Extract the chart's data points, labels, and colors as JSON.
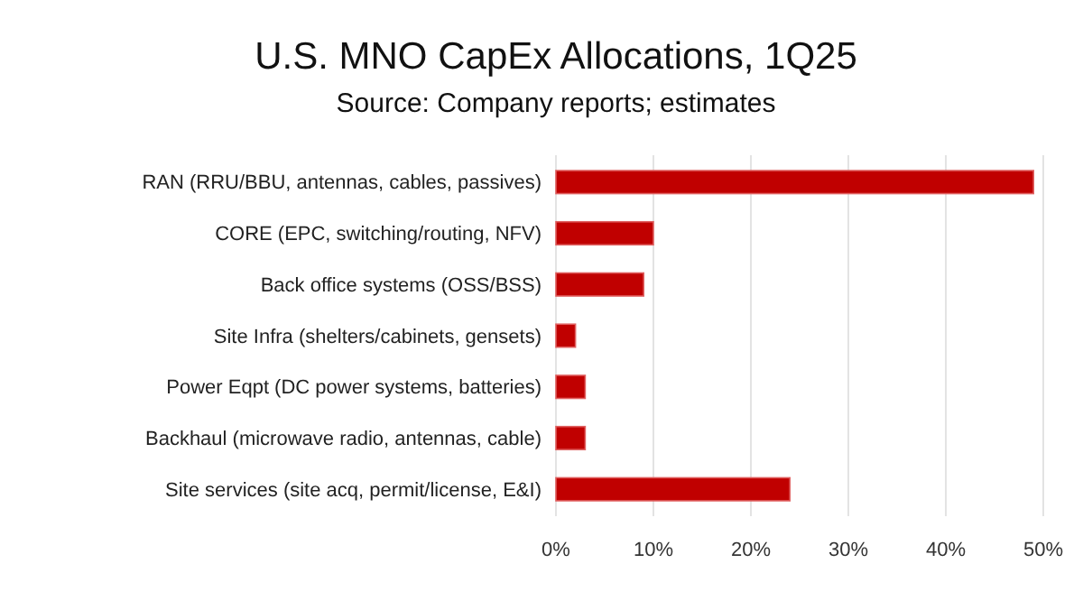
{
  "chart_data": {
    "type": "bar",
    "orientation": "horizontal",
    "title": "U.S. MNO CapEx Allocations, 1Q25",
    "subtitle": "Source: Company reports; estimates",
    "categories": [
      "RAN (RRU/BBU, antennas, cables, passives)",
      "CORE (EPC, switching/routing, NFV)",
      "Back office systems (OSS/BSS)",
      "Site Infra (shelters/cabinets, gensets)",
      "Power Eqpt (DC power systems, batteries)",
      "Backhaul (microwave radio, antennas, cable)",
      "Site services (site acq, permit/license, E&I)"
    ],
    "values": [
      49,
      10,
      9,
      2,
      3,
      3,
      24
    ],
    "color": "#c00000",
    "xlim": [
      0,
      50
    ],
    "xticks": [
      {
        "value": 0,
        "label": "0%"
      },
      {
        "value": 10,
        "label": "10%"
      },
      {
        "value": 20,
        "label": "20%"
      },
      {
        "value": 30,
        "label": "30%"
      },
      {
        "value": 40,
        "label": "40%"
      },
      {
        "value": 50,
        "label": "50%"
      }
    ],
    "grid": "x"
  }
}
